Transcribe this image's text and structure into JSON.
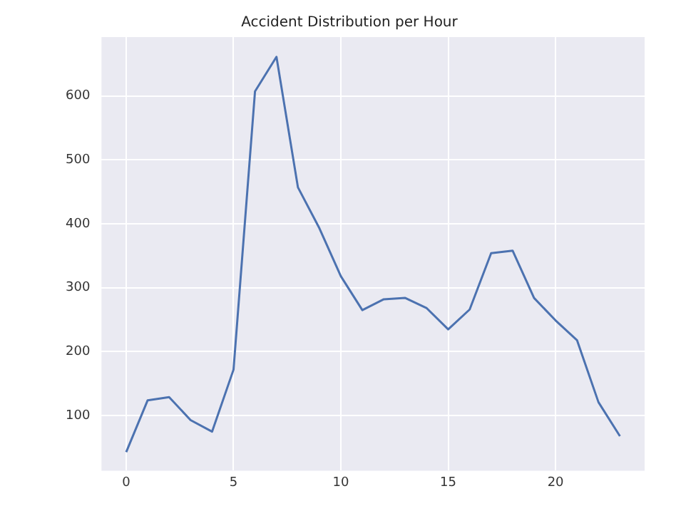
{
  "chart_data": {
    "type": "line",
    "title": "Accident Distribution per Hour",
    "x": [
      0,
      1,
      2,
      3,
      4,
      5,
      6,
      7,
      8,
      9,
      10,
      11,
      12,
      13,
      14,
      15,
      16,
      17,
      18,
      19,
      20,
      21,
      22,
      23
    ],
    "series": [
      {
        "color": "#4c72b0",
        "values": [
          43,
          124,
          129,
          93,
          75,
          172,
          607,
          661,
          457,
          393,
          318,
          265,
          282,
          284,
          268,
          235,
          266,
          354,
          358,
          284,
          249,
          218,
          121,
          68
        ]
      }
    ],
    "xlim": [
      -1.15,
      24.15
    ],
    "xticks": [
      0,
      5,
      10,
      15,
      20
    ],
    "ylim": [
      14,
      692
    ],
    "yticks": [
      100,
      200,
      300,
      400,
      500,
      600
    ],
    "grid": true,
    "legend": false,
    "marker": "none",
    "line_style": "solid"
  }
}
